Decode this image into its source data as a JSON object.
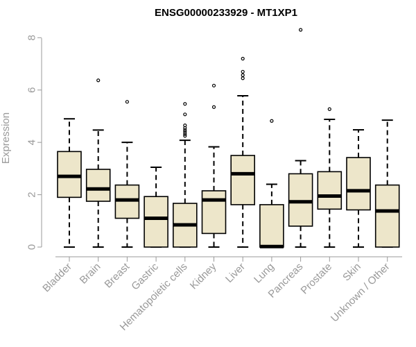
{
  "chart_data": {
    "type": "boxplot",
    "title": "ENSG00000233929 - MT1XP1",
    "xlabel": "",
    "ylabel": "Expression",
    "ylim": [
      0,
      8.3
    ],
    "yticks": [
      0,
      2,
      4,
      6,
      8
    ],
    "box_fill": "#ede6ca",
    "categories": [
      "Bladder",
      "Brain",
      "Breast",
      "Gastric",
      "Hematopoietic cells",
      "Kidney",
      "Liver",
      "Lung",
      "Pancreas",
      "Prostate",
      "Skin",
      "Unknown / Other"
    ],
    "boxes": [
      {
        "whisker_low": 0.0,
        "q1": 1.9,
        "median": 2.7,
        "q3": 3.65,
        "whisker_high": 4.9,
        "outliers": []
      },
      {
        "whisker_low": 0.0,
        "q1": 1.75,
        "median": 2.22,
        "q3": 2.97,
        "whisker_high": 4.47,
        "outliers": [
          6.37
        ]
      },
      {
        "whisker_low": 0.0,
        "q1": 1.1,
        "median": 1.8,
        "q3": 2.37,
        "whisker_high": 4.0,
        "outliers": [
          5.55
        ]
      },
      {
        "whisker_low": 0.0,
        "q1": 0.0,
        "median": 1.1,
        "q3": 1.93,
        "whisker_high": 3.05,
        "outliers": []
      },
      {
        "whisker_low": 0.0,
        "q1": 0.0,
        "median": 0.85,
        "q3": 1.67,
        "whisker_high": 4.08,
        "outliers": [
          4.25,
          4.32,
          4.4,
          4.47,
          4.55,
          4.65,
          5.07,
          5.47
        ]
      },
      {
        "whisker_low": 0.0,
        "q1": 0.52,
        "median": 1.8,
        "q3": 2.15,
        "whisker_high": 3.83,
        "outliers": [
          5.35,
          6.17
        ]
      },
      {
        "whisker_low": 0.0,
        "q1": 1.62,
        "median": 2.8,
        "q3": 3.5,
        "whisker_high": 5.78,
        "outliers": [
          6.45,
          6.57,
          6.7,
          7.2
        ]
      },
      {
        "whisker_low": 0.0,
        "q1": 0.0,
        "median": 0.02,
        "q3": 1.62,
        "whisker_high": 2.4,
        "outliers": [
          4.82
        ]
      },
      {
        "whisker_low": 0.0,
        "q1": 0.8,
        "median": 1.73,
        "q3": 2.8,
        "whisker_high": 3.3,
        "outliers": [
          8.3
        ]
      },
      {
        "whisker_low": 0.0,
        "q1": 1.45,
        "median": 1.95,
        "q3": 2.88,
        "whisker_high": 4.88,
        "outliers": [
          5.27
        ]
      },
      {
        "whisker_low": 0.0,
        "q1": 1.42,
        "median": 2.15,
        "q3": 3.42,
        "whisker_high": 4.48,
        "outliers": []
      },
      {
        "whisker_low": 0.0,
        "q1": 0.0,
        "median": 1.38,
        "q3": 2.37,
        "whisker_high": 4.85,
        "outliers": []
      }
    ]
  }
}
